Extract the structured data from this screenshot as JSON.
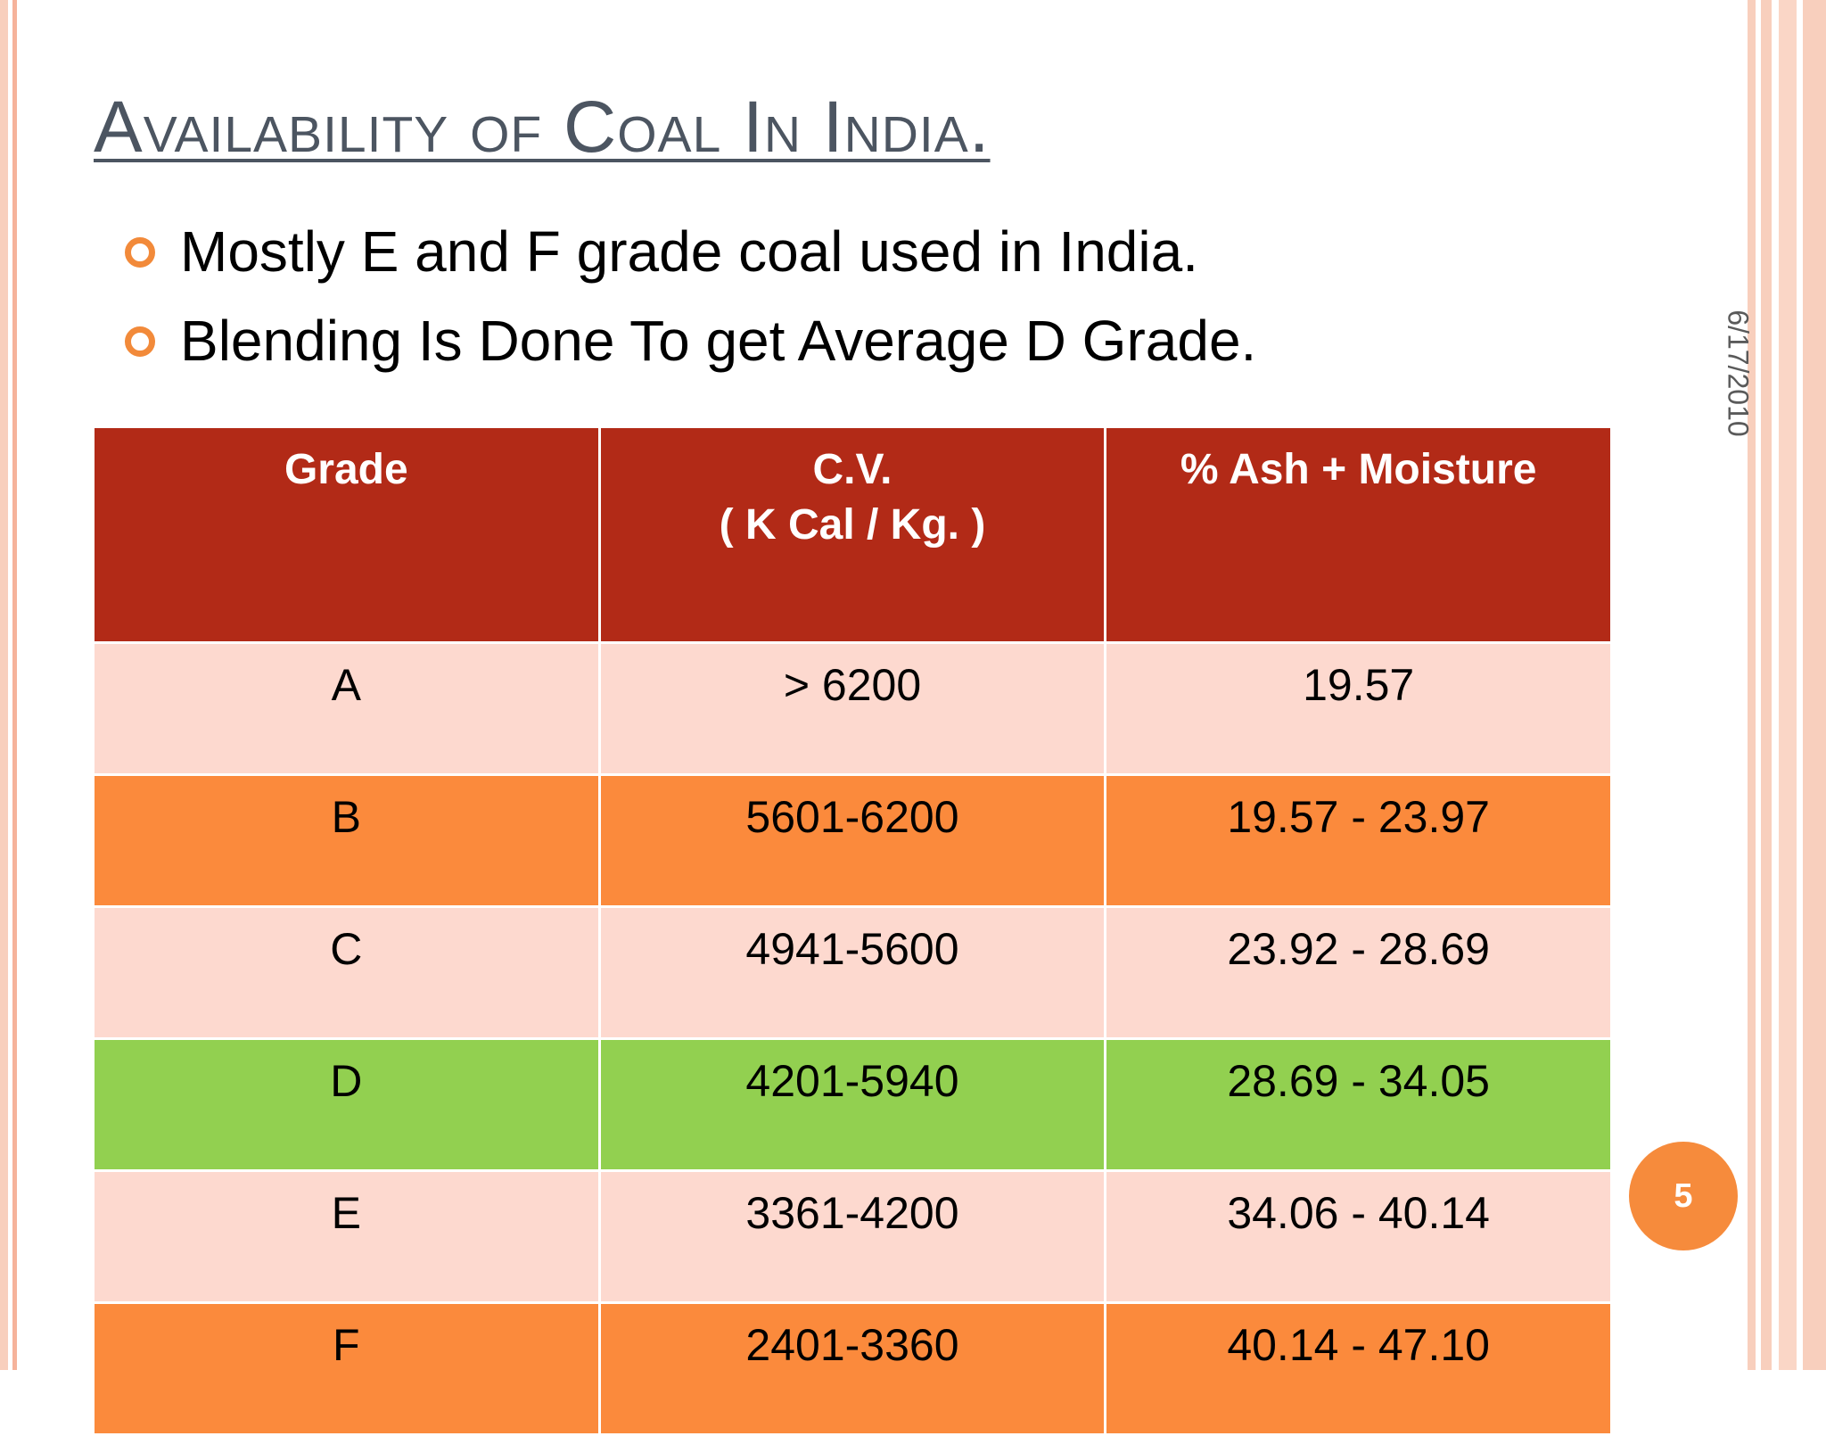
{
  "slide": {
    "title": "Availability of Coal In India.",
    "bullets": [
      "Mostly E and F grade coal used in India.",
      "Blending Is Done To get Average D Grade."
    ],
    "date": "6/17/2010",
    "page_number": "5"
  },
  "colors": {
    "header": "#b22a17",
    "light_row": "#fdd9cf",
    "orange_row": "#fb8a3c",
    "green_row": "#92d050",
    "accent": "#f68b3c"
  },
  "table": {
    "headers": {
      "grade": "Grade",
      "cv_line1": "C.V.",
      "cv_line2": "( K Cal / Kg. )",
      "ash": "% Ash + Moisture"
    },
    "rows": [
      {
        "grade": "A",
        "cv": "> 6200",
        "ash": "19.57"
      },
      {
        "grade": "B",
        "cv": "5601-6200",
        "ash": "19.57 - 23.97"
      },
      {
        "grade": "C",
        "cv": "4941-5600",
        "ash": "23.92 - 28.69"
      },
      {
        "grade": "D",
        "cv": "4201-5940",
        "ash": "28.69 - 34.05"
      },
      {
        "grade": "E",
        "cv": "3361-4200",
        "ash": "34.06 - 40.14"
      },
      {
        "grade": "F",
        "cv": "2401-3360",
        "ash": "40.14 - 47.10"
      }
    ]
  }
}
